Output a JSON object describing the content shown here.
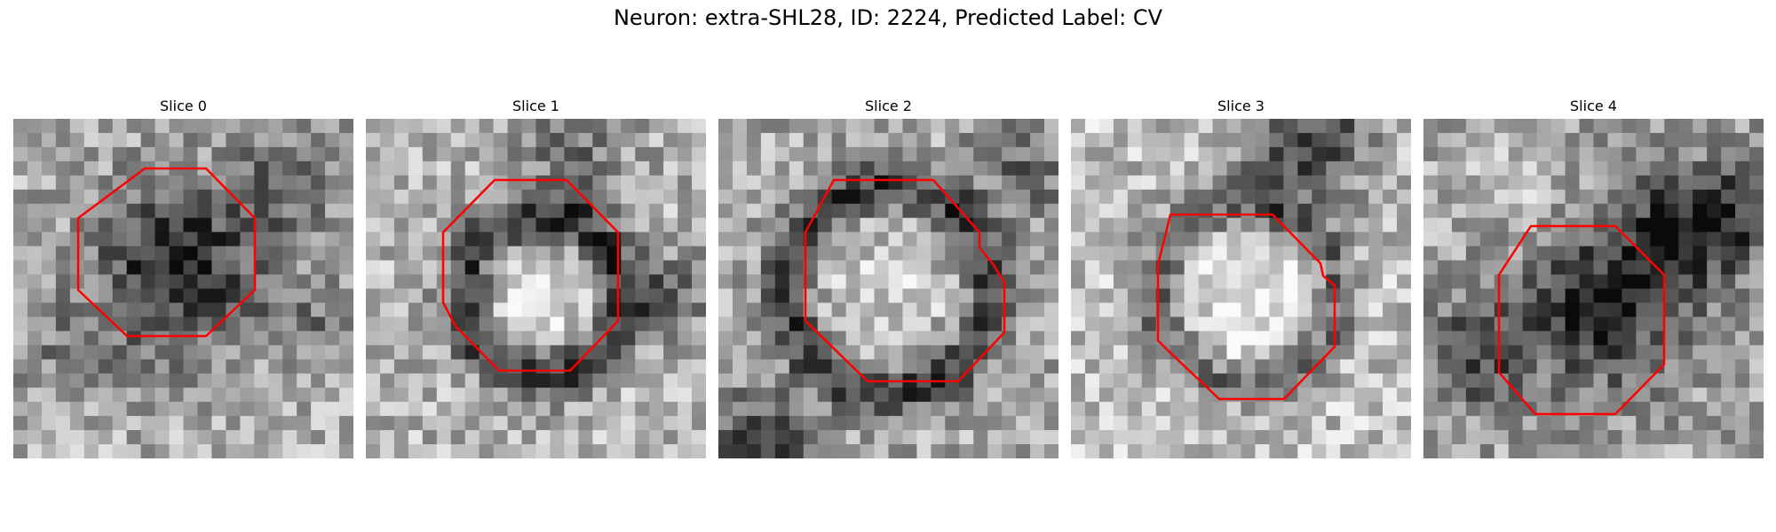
{
  "figure": {
    "title": "Neuron: extra-SHL28, ID: 2224, Predicted Label: CV"
  },
  "panels": [
    {
      "title": "Slice 0"
    },
    {
      "title": "Slice 1"
    },
    {
      "title": "Slice 2"
    },
    {
      "title": "Slice 3"
    },
    {
      "title": "Slice 4"
    }
  ],
  "colors": {
    "contour": "#ff0000",
    "colormap": "grayscale"
  }
}
